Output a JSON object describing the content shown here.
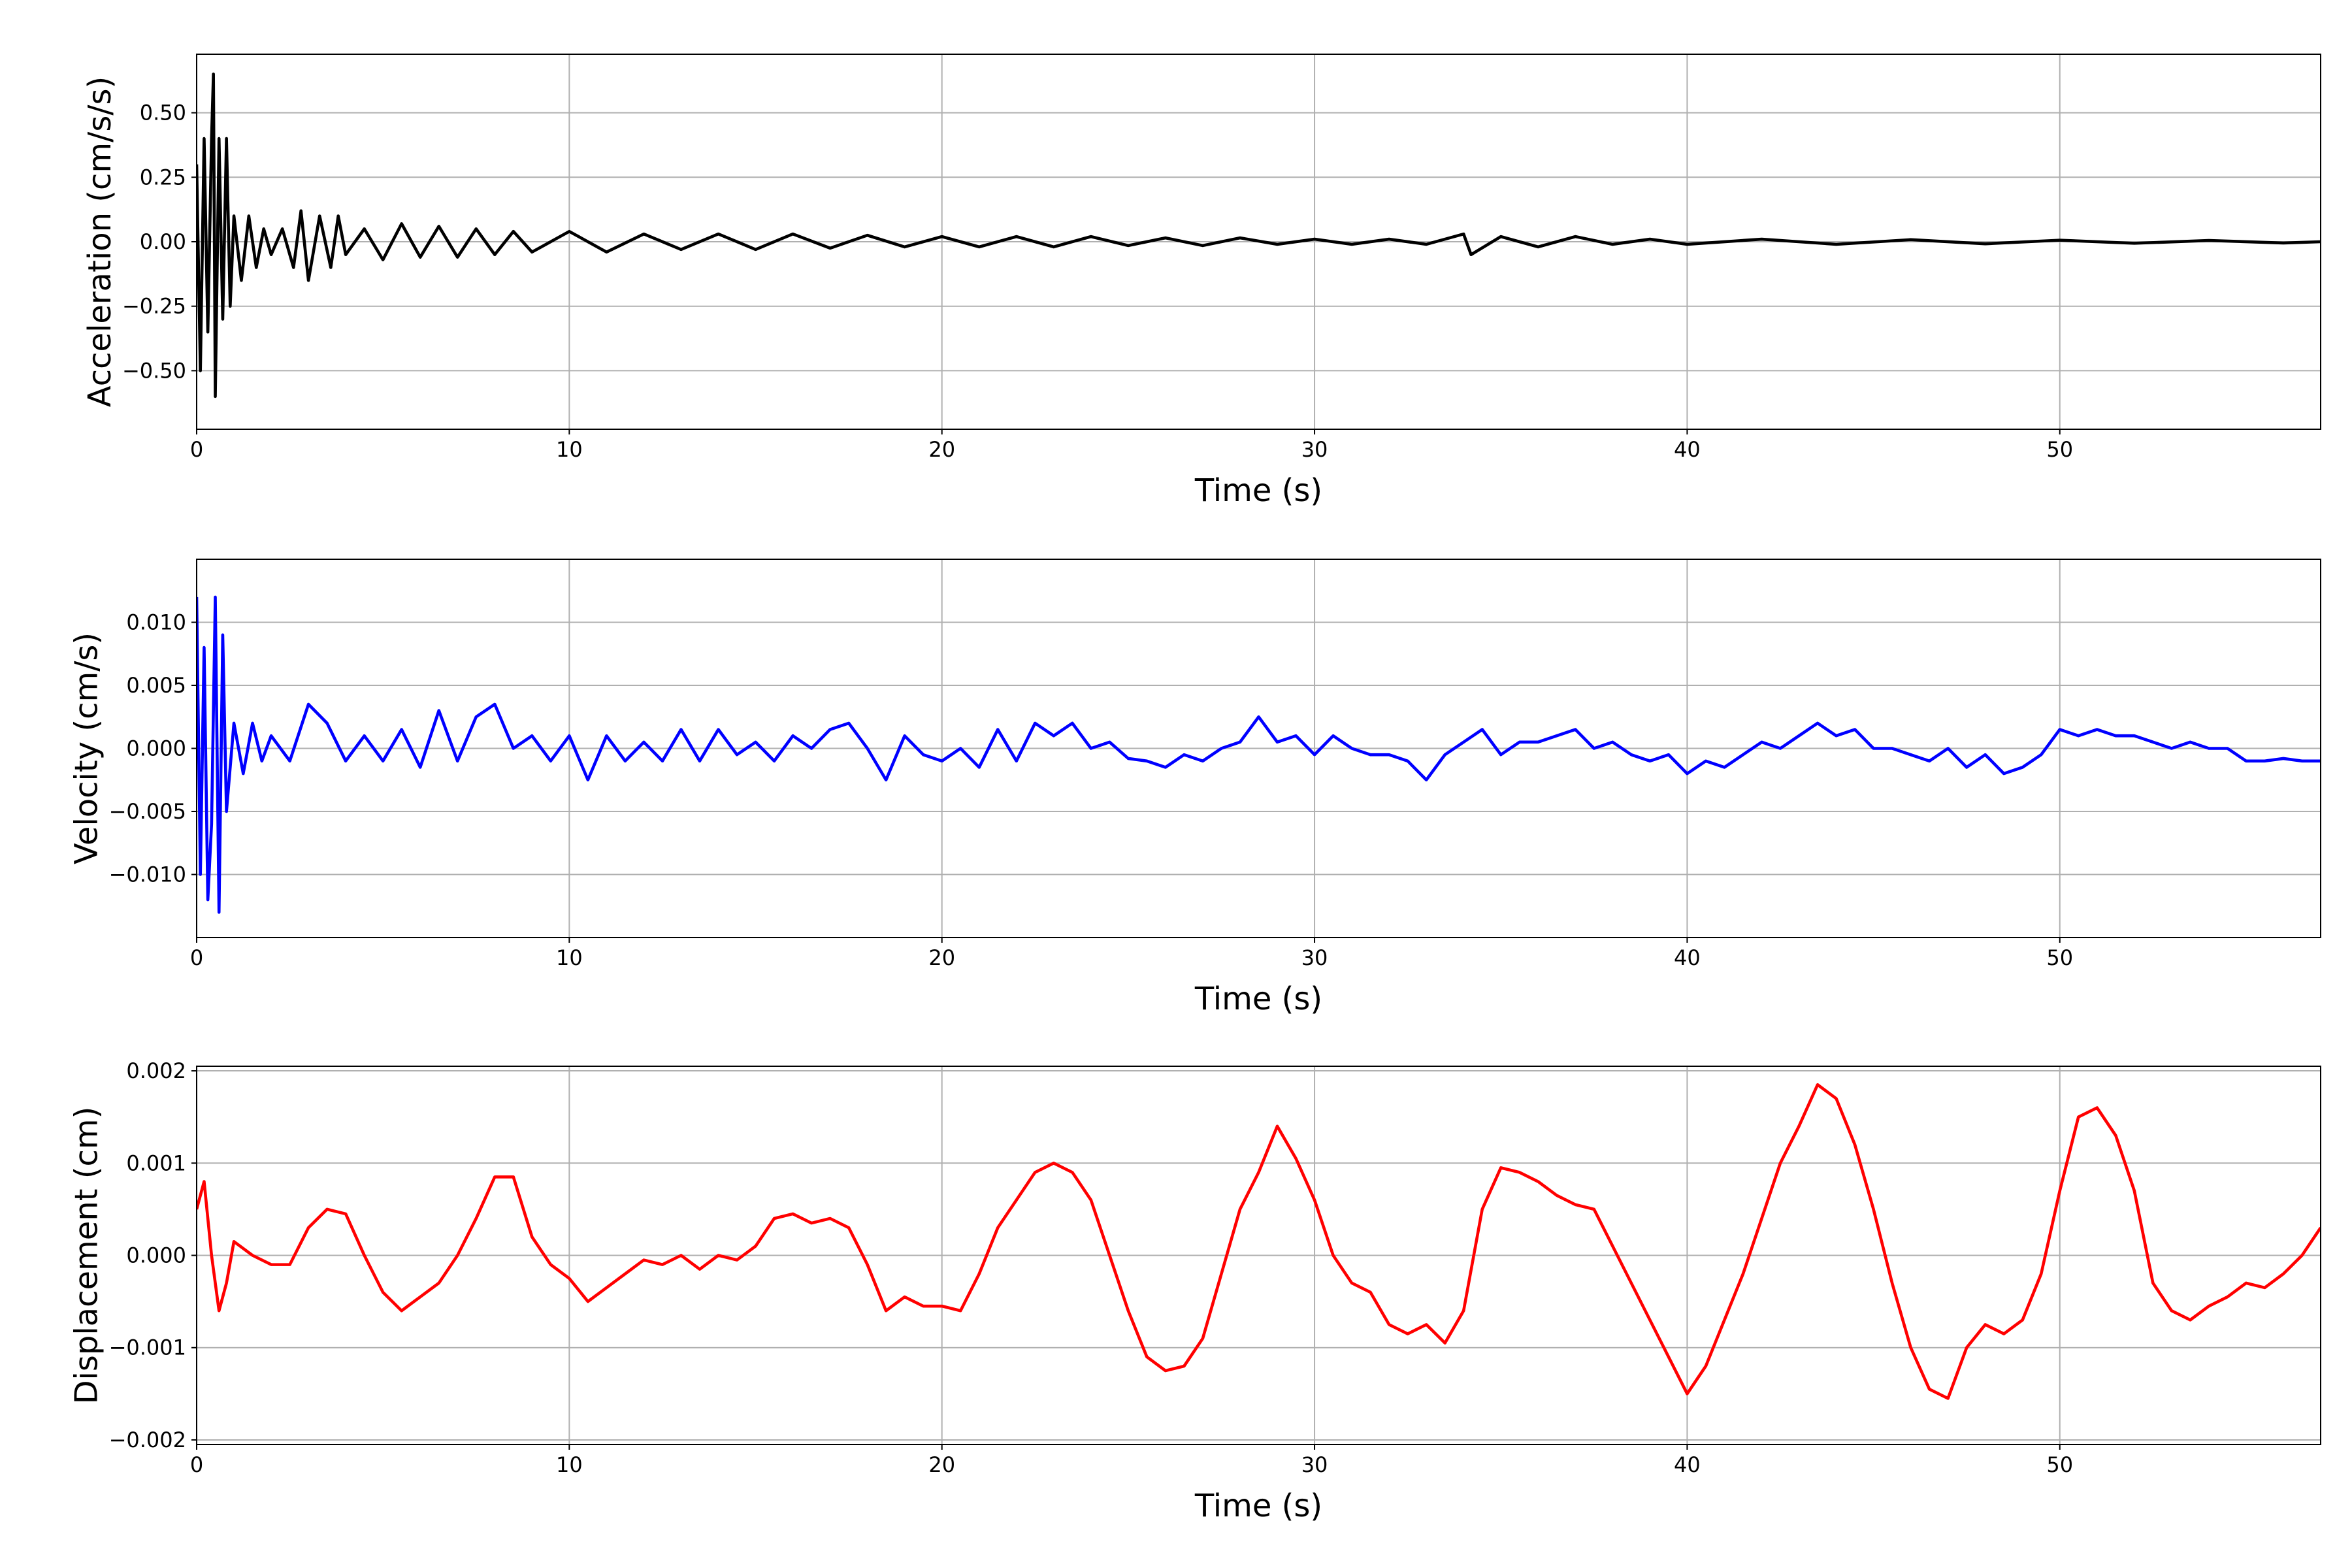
{
  "chart_data": [
    {
      "type": "line",
      "ylabel": "Acceleration (cm/s/s)",
      "xlabel": "Time (s)",
      "color": "#000000",
      "grid": true,
      "xlim": [
        0,
        57
      ],
      "xticks": [
        0,
        10,
        20,
        30,
        40,
        50
      ],
      "ylim": [
        -0.727,
        0.727
      ],
      "yticks": [
        {
          "value": -0.5,
          "label": "−0.50"
        },
        {
          "value": -0.25,
          "label": "−0.25"
        },
        {
          "value": 0,
          "label": "0.00"
        },
        {
          "value": 0.25,
          "label": "0.25"
        },
        {
          "value": 0.5,
          "label": "0.50"
        }
      ],
      "x": [
        0,
        0.1,
        0.2,
        0.3,
        0.4,
        0.45,
        0.5,
        0.6,
        0.7,
        0.8,
        0.9,
        1,
        1.2,
        1.4,
        1.6,
        1.8,
        2,
        2.3,
        2.6,
        2.8,
        3,
        3.3,
        3.6,
        3.8,
        4,
        4.5,
        5,
        5.5,
        6,
        6.5,
        7,
        7.5,
        8,
        8.5,
        9,
        10,
        11,
        12,
        13,
        14,
        15,
        16,
        17,
        18,
        19,
        20,
        21,
        22,
        23,
        24,
        25,
        26,
        27,
        28,
        29,
        30,
        31,
        32,
        33,
        34,
        34.2,
        35,
        36,
        37,
        38,
        39,
        40,
        42,
        44,
        46,
        48,
        50,
        52,
        54,
        56,
        57
      ],
      "values": [
        0.3,
        -0.5,
        0.4,
        -0.35,
        0.4,
        0.65,
        -0.6,
        0.4,
        -0.3,
        0.4,
        -0.25,
        0.1,
        -0.15,
        0.1,
        -0.1,
        0.05,
        -0.05,
        0.05,
        -0.1,
        0.12,
        -0.15,
        0.1,
        -0.1,
        0.1,
        -0.05,
        0.05,
        -0.07,
        0.07,
        -0.06,
        0.06,
        -0.06,
        0.05,
        -0.05,
        0.04,
        -0.04,
        0.04,
        -0.04,
        0.03,
        -0.03,
        0.03,
        -0.03,
        0.03,
        -0.025,
        0.025,
        -0.02,
        0.02,
        -0.02,
        0.02,
        -0.02,
        0.02,
        -0.015,
        0.015,
        -0.015,
        0.015,
        -0.01,
        0.01,
        -0.01,
        0.01,
        -0.01,
        0.03,
        -0.05,
        0.02,
        -0.02,
        0.02,
        -0.01,
        0.01,
        -0.01,
        0.01,
        -0.01,
        0.008,
        -0.008,
        0.006,
        -0.006,
        0.005,
        -0.005,
        0
      ]
    },
    {
      "type": "line",
      "ylabel": "Velocity (cm/s)",
      "xlabel": "Time (s)",
      "color": "#0000ff",
      "grid": true,
      "xlim": [
        0,
        57
      ],
      "xticks": [
        0,
        10,
        20,
        30,
        40,
        50
      ],
      "ylim": [
        -0.015,
        0.015
      ],
      "yticks": [
        {
          "value": -0.01,
          "label": "−0.010"
        },
        {
          "value": -0.005,
          "label": "−0.005"
        },
        {
          "value": 0,
          "label": "0.000"
        },
        {
          "value": 0.005,
          "label": "0.005"
        },
        {
          "value": 0.01,
          "label": "0.010"
        }
      ],
      "x": [
        0,
        0.1,
        0.2,
        0.3,
        0.4,
        0.5,
        0.6,
        0.7,
        0.8,
        1,
        1.25,
        1.5,
        1.75,
        2,
        2.5,
        3,
        3.5,
        4,
        4.5,
        5,
        5.5,
        6,
        6.5,
        7,
        7.5,
        8,
        8.5,
        9,
        9.5,
        10,
        10.5,
        11,
        11.5,
        12,
        12.5,
        13,
        13.5,
        14,
        14.5,
        15,
        15.5,
        16,
        16.5,
        17,
        17.5,
        18,
        18.5,
        19,
        19.5,
        20,
        20.5,
        21,
        21.5,
        22,
        22.5,
        23,
        23.5,
        24,
        24.5,
        25,
        25.5,
        26,
        26.5,
        27,
        27.5,
        28,
        28.5,
        29,
        29.5,
        30,
        30.5,
        31,
        31.5,
        32,
        32.5,
        33,
        33.5,
        34,
        34.5,
        35,
        35.5,
        36,
        36.5,
        37,
        37.5,
        38,
        38.5,
        39,
        39.5,
        40,
        40.5,
        41,
        41.5,
        42,
        42.5,
        43,
        43.5,
        44,
        44.5,
        45,
        45.5,
        46,
        46.5,
        47,
        47.5,
        48,
        48.5,
        49,
        49.5,
        50,
        50.5,
        51,
        51.5,
        52,
        52.5,
        53,
        53.5,
        54,
        54.5,
        55,
        55.5,
        56,
        56.5,
        57
      ],
      "values": [
        0.012,
        -0.01,
        0.008,
        -0.012,
        -0.006,
        0.012,
        -0.013,
        0.009,
        -0.005,
        0.002,
        -0.002,
        0.002,
        -0.001,
        0.001,
        -0.001,
        0.0035,
        0.002,
        -0.001,
        0.001,
        -0.001,
        0.0015,
        -0.0015,
        0.003,
        -0.001,
        0.0025,
        0.0035,
        0,
        0.001,
        -0.001,
        0.001,
        -0.0025,
        0.001,
        -0.001,
        0.0005,
        -0.001,
        0.0015,
        -0.001,
        0.0015,
        -0.0005,
        0.0005,
        -0.001,
        0.001,
        0,
        0.0015,
        0.002,
        0,
        -0.0025,
        0.001,
        -0.0005,
        -0.001,
        0,
        -0.0015,
        0.0015,
        -0.001,
        0.002,
        0.001,
        0.002,
        0,
        0.0005,
        -0.0008,
        -0.001,
        -0.0015,
        -0.0005,
        -0.001,
        0,
        0.0005,
        0.0025,
        0.0005,
        0.001,
        -0.0005,
        0.001,
        0,
        -0.0005,
        -0.0005,
        -0.001,
        -0.0025,
        -0.0005,
        0.0005,
        0.0015,
        -0.0005,
        0.0005,
        0.0005,
        0.001,
        0.0015,
        0,
        0.0005,
        -0.0005,
        -0.001,
        -0.0005,
        -0.002,
        -0.001,
        -0.0015,
        -0.0005,
        0.0005,
        0,
        0.001,
        0.002,
        0.001,
        0.0015,
        0,
        0,
        -0.0005,
        -0.001,
        0,
        -0.0015,
        -0.0005,
        -0.002,
        -0.0015,
        -0.0005,
        0.0015,
        0.001,
        0.0015,
        0.001,
        0.001,
        0.0005,
        0,
        0.0005,
        0,
        0,
        -0.001,
        -0.001,
        -0.0008,
        -0.001,
        -0.001
      ]
    },
    {
      "type": "line",
      "ylabel": "Displacement (cm)",
      "xlabel": "Time (s)",
      "color": "#ff0000",
      "grid": true,
      "xlim": [
        0,
        57
      ],
      "xticks": [
        0,
        10,
        20,
        30,
        40,
        50
      ],
      "ylim": [
        -0.00205,
        0.00205
      ],
      "yticks": [
        {
          "value": -0.002,
          "label": "−0.002"
        },
        {
          "value": -0.001,
          "label": "−0.001"
        },
        {
          "value": 0,
          "label": "0.000"
        },
        {
          "value": 0.001,
          "label": "0.001"
        },
        {
          "value": 0.002,
          "label": "0.002"
        }
      ],
      "x": [
        0,
        0.2,
        0.4,
        0.6,
        0.8,
        1,
        1.5,
        2,
        2.5,
        3,
        3.5,
        4,
        4.5,
        5,
        5.5,
        6,
        6.5,
        7,
        7.5,
        8,
        8.5,
        9,
        9.5,
        10,
        10.5,
        11,
        11.5,
        12,
        12.5,
        13,
        13.5,
        14,
        14.5,
        15,
        15.5,
        16,
        16.5,
        17,
        17.5,
        18,
        18.5,
        19,
        19.5,
        20,
        20.5,
        21,
        21.5,
        22,
        22.5,
        23,
        23.5,
        24,
        24.5,
        25,
        25.5,
        26,
        26.5,
        27,
        27.5,
        28,
        28.5,
        29,
        29.5,
        30,
        30.5,
        31,
        31.5,
        32,
        32.5,
        33,
        33.5,
        34,
        34.5,
        35,
        35.5,
        36,
        36.5,
        37,
        37.5,
        38,
        38.5,
        39,
        39.5,
        40,
        40.5,
        41,
        41.5,
        42,
        42.5,
        43,
        43.5,
        44,
        44.5,
        45,
        45.5,
        46,
        46.5,
        47,
        47.5,
        48,
        48.5,
        49,
        49.5,
        50,
        50.5,
        51,
        51.5,
        52,
        52.5,
        53,
        53.5,
        54,
        54.5,
        55,
        55.5,
        56,
        56.5,
        57
      ],
      "values": [
        0.0005,
        0.0008,
        0,
        -0.0006,
        -0.0003,
        0.00015,
        0,
        -0.0001,
        -0.0001,
        0.0003,
        0.0005,
        0.00045,
        0,
        -0.0004,
        -0.0006,
        -0.00045,
        -0.0003,
        0,
        0.0004,
        0.00085,
        0.00085,
        0.0002,
        -0.0001,
        -0.00025,
        -0.0005,
        -0.00035,
        -0.0002,
        -5e-05,
        -0.0001,
        0,
        -0.00015,
        0,
        -5e-05,
        0.0001,
        0.0004,
        0.00045,
        0.00035,
        0.0004,
        0.0003,
        -0.0001,
        -0.0006,
        -0.00045,
        -0.00055,
        -0.00055,
        -0.0006,
        -0.0002,
        0.0003,
        0.0006,
        0.0009,
        0.001,
        0.0009,
        0.0006,
        0,
        -0.0006,
        -0.0011,
        -0.00125,
        -0.0012,
        -0.0009,
        -0.0002,
        0.0005,
        0.0009,
        0.0014,
        0.00105,
        0.0006,
        0,
        -0.0003,
        -0.0004,
        -0.00075,
        -0.00085,
        -0.00075,
        -0.00095,
        -0.0006,
        0.0005,
        0.00095,
        0.0009,
        0.0008,
        0.00065,
        0.00055,
        0.0005,
        0.0001,
        -0.0003,
        -0.0007,
        -0.0011,
        -0.0015,
        -0.0012,
        -0.0007,
        -0.0002,
        0.0004,
        0.001,
        0.0014,
        0.00185,
        0.0017,
        0.0012,
        0.0005,
        -0.0003,
        -0.001,
        -0.00145,
        -0.00155,
        -0.001,
        -0.00075,
        -0.00085,
        -0.0007,
        -0.0002,
        0.0007,
        0.0015,
        0.0016,
        0.0013,
        0.0007,
        -0.0003,
        -0.0006,
        -0.0007,
        -0.00055,
        -0.00045,
        -0.0003,
        -0.00035,
        -0.0002,
        0,
        0.0003
      ]
    }
  ]
}
